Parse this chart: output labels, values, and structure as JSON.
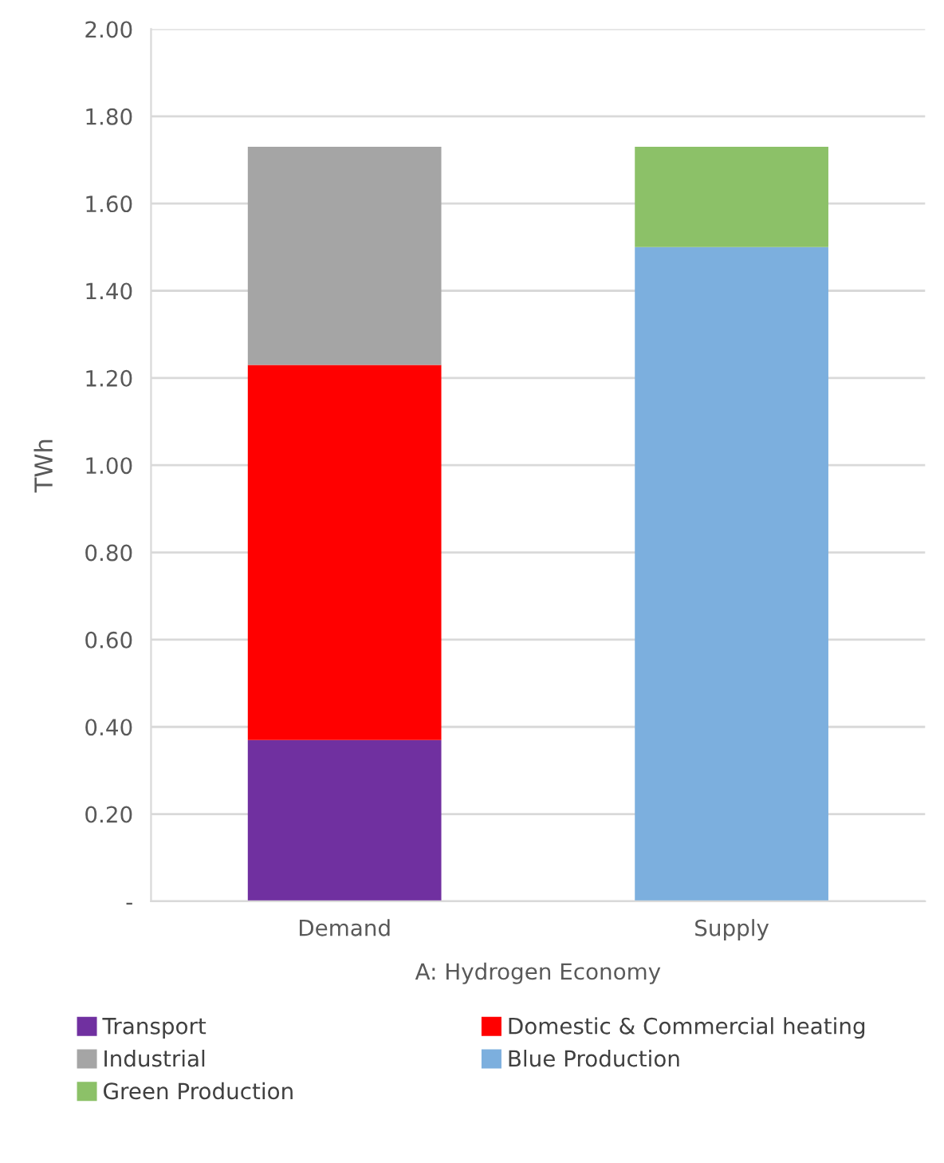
{
  "chart_data": {
    "type": "bar",
    "stacked": true,
    "categories": [
      "Demand",
      "Supply"
    ],
    "xlabel": "A: Hydrogen Economy",
    "ylabel": "TWh",
    "series": [
      {
        "name": "Transport",
        "color": "#7030a0",
        "values": [
          0.37,
          null
        ]
      },
      {
        "name": "Domestic & Commercial heating",
        "color": "#ff0000",
        "values": [
          0.86,
          null
        ]
      },
      {
        "name": "Industrial",
        "color": "#a5a5a5",
        "values": [
          0.5,
          null
        ]
      },
      {
        "name": "Blue Production",
        "color": "#7cafde",
        "values": [
          null,
          1.5
        ]
      },
      {
        "name": "Green Production",
        "color": "#8cc168",
        "values": [
          null,
          0.23
        ]
      }
    ],
    "ylim": [
      0,
      2.0
    ],
    "yticks": [
      {
        "value": 0,
        "label": "-"
      },
      {
        "value": 0.2,
        "label": "0.20"
      },
      {
        "value": 0.4,
        "label": "0.40"
      },
      {
        "value": 0.6,
        "label": "0.60"
      },
      {
        "value": 0.8,
        "label": "0.80"
      },
      {
        "value": 1.0,
        "label": "1.00"
      },
      {
        "value": 1.2,
        "label": "1.20"
      },
      {
        "value": 1.4,
        "label": "1.40"
      },
      {
        "value": 1.6,
        "label": "1.60"
      },
      {
        "value": 1.8,
        "label": "1.80"
      },
      {
        "value": 2.0,
        "label": "2.00"
      }
    ],
    "grid": "y",
    "legend": "bottom"
  }
}
